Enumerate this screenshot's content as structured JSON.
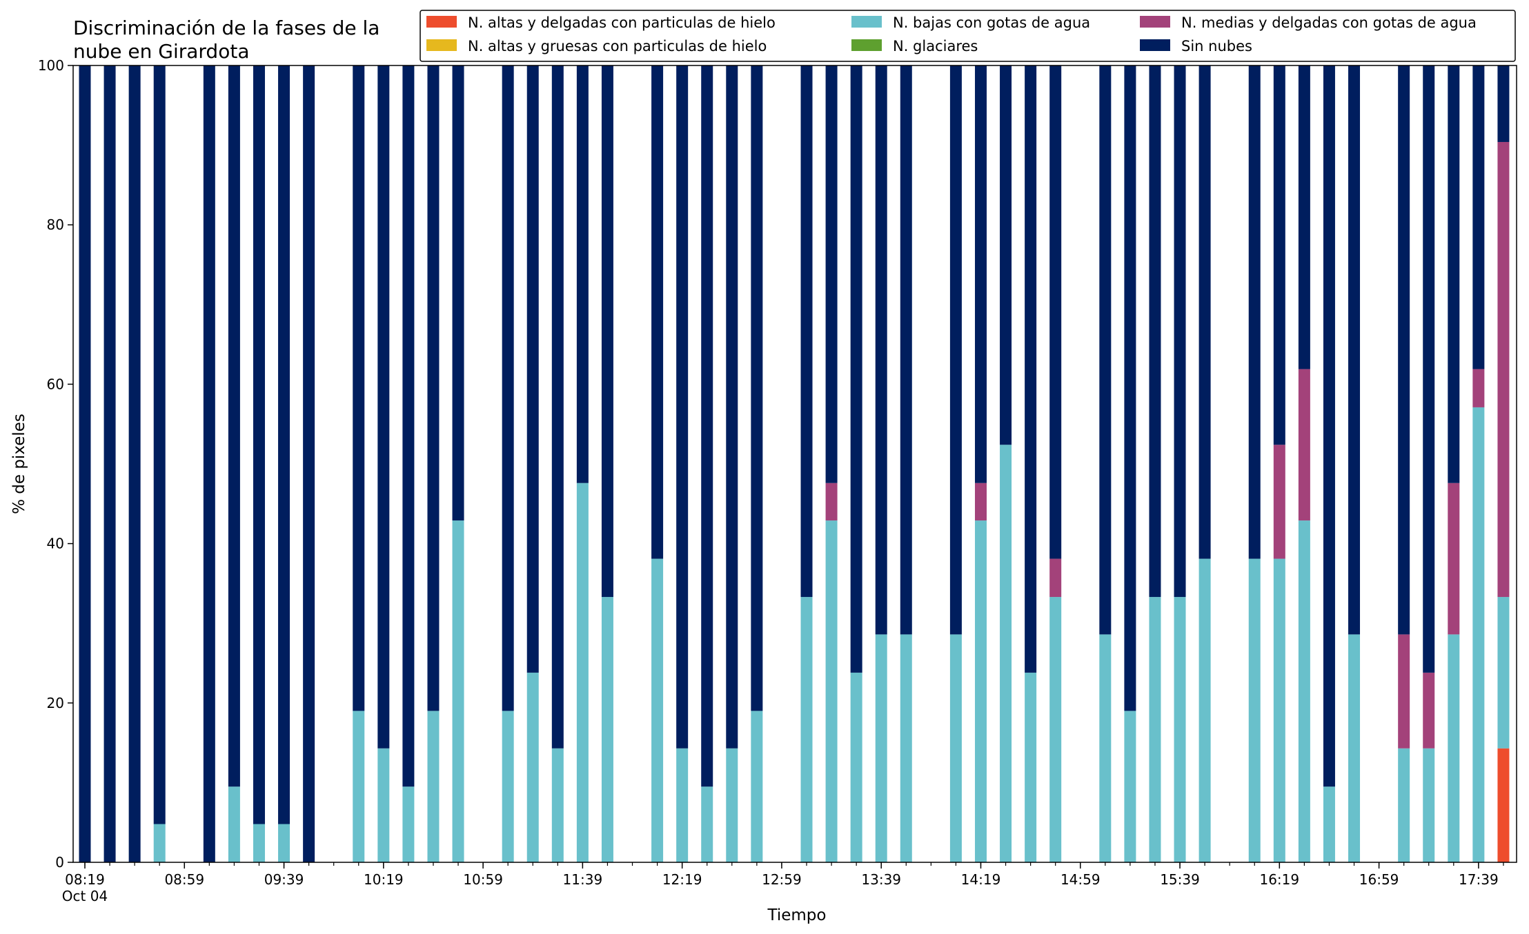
{
  "chart_data": {
    "type": "bar",
    "stacked": true,
    "title_lines": [
      "Discriminación de la fases de la",
      "nube en Girardota"
    ],
    "xlabel": "Tiempo",
    "ylabel": "% de pixeles",
    "ylim": [
      0,
      100
    ],
    "yticks": [
      0,
      20,
      40,
      60,
      80,
      100
    ],
    "grid": false,
    "legend_position": "top-right",
    "x_start": "08:19",
    "x_end": "17:59",
    "x_step_minutes": 10,
    "x_tick_labels": [
      {
        "time": "08:19",
        "label": "08:19",
        "sublabel": "Oct 04"
      },
      {
        "time": "08:59",
        "label": "08:59"
      },
      {
        "time": "09:39",
        "label": "09:39"
      },
      {
        "time": "10:19",
        "label": "10:19"
      },
      {
        "time": "10:59",
        "label": "10:59"
      },
      {
        "time": "11:39",
        "label": "11:39"
      },
      {
        "time": "12:19",
        "label": "12:19"
      },
      {
        "time": "12:59",
        "label": "12:59"
      },
      {
        "time": "13:39",
        "label": "13:39"
      },
      {
        "time": "14:19",
        "label": "14:19"
      },
      {
        "time": "14:59",
        "label": "14:59"
      },
      {
        "time": "15:39",
        "label": "15:39"
      },
      {
        "time": "16:19",
        "label": "16:19"
      },
      {
        "time": "16:59",
        "label": "16:59"
      },
      {
        "time": "17:39",
        "label": "17:39"
      }
    ],
    "series": [
      {
        "name": "N. altas y delgadas con particulas de hielo",
        "color": "#ee4d2d"
      },
      {
        "name": "N. altas y gruesas con particulas de hielo",
        "color": "#e6b81e"
      },
      {
        "name": "N. bajas con gotas de agua",
        "color": "#69c0cb"
      },
      {
        "name": "N. glaciares",
        "color": "#5ea02f"
      },
      {
        "name": "N. medias y delgadas con gotas de agua",
        "color": "#a3427a"
      },
      {
        "name": "Sin nubes",
        "color": "#001e5e"
      }
    ],
    "legend_columns": [
      [
        0,
        1
      ],
      [
        2,
        3
      ],
      [
        4,
        5
      ]
    ],
    "stack_order": [
      0,
      1,
      2,
      3,
      4,
      5
    ],
    "bars": [
      {
        "time": "08:19",
        "values": [
          0,
          0,
          0,
          0,
          0,
          100
        ]
      },
      {
        "time": "08:29",
        "values": [
          0,
          0,
          0,
          0,
          0,
          100
        ]
      },
      {
        "time": "08:39",
        "values": [
          0,
          0,
          0,
          0,
          0,
          100
        ]
      },
      {
        "time": "08:49",
        "values": [
          0,
          0,
          4.8,
          0,
          0,
          95.2
        ]
      },
      {
        "time": "09:09",
        "values": [
          0,
          0,
          0,
          0,
          0,
          100
        ]
      },
      {
        "time": "09:19",
        "values": [
          0,
          0,
          9.5,
          0,
          0,
          90.5
        ]
      },
      {
        "time": "09:29",
        "values": [
          0,
          0,
          4.8,
          0,
          0,
          95.2
        ]
      },
      {
        "time": "09:39",
        "values": [
          0,
          0,
          4.8,
          0,
          0,
          95.2
        ]
      },
      {
        "time": "09:49",
        "values": [
          0,
          0,
          0,
          0,
          0,
          100
        ]
      },
      {
        "time": "10:09",
        "values": [
          0,
          0,
          19.0,
          0,
          0,
          81.0
        ]
      },
      {
        "time": "10:19",
        "values": [
          0,
          0,
          14.3,
          0,
          0,
          85.7
        ]
      },
      {
        "time": "10:29",
        "values": [
          0,
          0,
          9.5,
          0,
          0,
          90.5
        ]
      },
      {
        "time": "10:39",
        "values": [
          0,
          0,
          19.0,
          0,
          0,
          81.0
        ]
      },
      {
        "time": "10:49",
        "values": [
          0,
          0,
          42.9,
          0,
          0,
          57.1
        ]
      },
      {
        "time": "11:09",
        "values": [
          0,
          0,
          19.0,
          0,
          0,
          81.0
        ]
      },
      {
        "time": "11:19",
        "values": [
          0,
          0,
          23.8,
          0,
          0,
          76.2
        ]
      },
      {
        "time": "11:29",
        "values": [
          0,
          0,
          14.3,
          0,
          0,
          85.7
        ]
      },
      {
        "time": "11:39",
        "values": [
          0,
          0,
          47.6,
          0,
          0,
          52.4
        ]
      },
      {
        "time": "11:49",
        "values": [
          0,
          0,
          33.3,
          0,
          0,
          66.7
        ]
      },
      {
        "time": "12:09",
        "values": [
          0,
          0,
          38.1,
          0,
          0,
          61.9
        ]
      },
      {
        "time": "12:19",
        "values": [
          0,
          0,
          14.3,
          0,
          0,
          85.7
        ]
      },
      {
        "time": "12:29",
        "values": [
          0,
          0,
          9.5,
          0,
          0,
          90.5
        ]
      },
      {
        "time": "12:39",
        "values": [
          0,
          0,
          14.3,
          0,
          0,
          85.7
        ]
      },
      {
        "time": "12:49",
        "values": [
          0,
          0,
          19.0,
          0,
          0,
          81.0
        ]
      },
      {
        "time": "13:09",
        "values": [
          0,
          0,
          33.3,
          0,
          0,
          66.7
        ]
      },
      {
        "time": "13:19",
        "values": [
          0,
          0,
          42.9,
          0,
          4.7,
          52.4
        ]
      },
      {
        "time": "13:29",
        "values": [
          0,
          0,
          23.8,
          0,
          0,
          76.2
        ]
      },
      {
        "time": "13:39",
        "values": [
          0,
          0,
          28.6,
          0,
          0,
          71.4
        ]
      },
      {
        "time": "13:49",
        "values": [
          0,
          0,
          28.6,
          0,
          0,
          71.4
        ]
      },
      {
        "time": "14:09",
        "values": [
          0,
          0,
          28.6,
          0,
          0,
          71.4
        ]
      },
      {
        "time": "14:19",
        "values": [
          0,
          0,
          42.9,
          0,
          4.7,
          52.4
        ]
      },
      {
        "time": "14:29",
        "values": [
          0,
          0,
          52.4,
          0,
          0,
          47.6
        ]
      },
      {
        "time": "14:39",
        "values": [
          0,
          0,
          23.8,
          0,
          0,
          76.2
        ]
      },
      {
        "time": "14:49",
        "values": [
          0,
          0,
          33.3,
          0,
          4.8,
          61.9
        ]
      },
      {
        "time": "15:09",
        "values": [
          0,
          0,
          28.6,
          0,
          0,
          71.4
        ]
      },
      {
        "time": "15:19",
        "values": [
          0,
          0,
          19.0,
          0,
          0,
          81.0
        ]
      },
      {
        "time": "15:29",
        "values": [
          0,
          0,
          33.3,
          0,
          0,
          66.7
        ]
      },
      {
        "time": "15:39",
        "values": [
          0,
          0,
          33.3,
          0,
          0,
          66.7
        ]
      },
      {
        "time": "15:49",
        "values": [
          0,
          0,
          38.1,
          0,
          0,
          61.9
        ]
      },
      {
        "time": "16:09",
        "values": [
          0,
          0,
          38.1,
          0,
          0,
          61.9
        ]
      },
      {
        "time": "16:19",
        "values": [
          0,
          0,
          38.1,
          0,
          14.3,
          47.6
        ]
      },
      {
        "time": "16:29",
        "values": [
          0,
          0,
          42.9,
          0,
          19.0,
          38.1
        ]
      },
      {
        "time": "16:39",
        "values": [
          0,
          0,
          9.5,
          0,
          0,
          90.5
        ]
      },
      {
        "time": "16:49",
        "values": [
          0,
          0,
          28.6,
          0,
          0,
          71.4
        ]
      },
      {
        "time": "17:09",
        "values": [
          0,
          0,
          14.3,
          0,
          14.3,
          71.4
        ]
      },
      {
        "time": "17:19",
        "values": [
          0,
          0,
          14.3,
          0,
          9.5,
          76.2
        ]
      },
      {
        "time": "17:29",
        "values": [
          0,
          0,
          28.6,
          0,
          19.0,
          52.4
        ]
      },
      {
        "time": "17:39",
        "values": [
          0,
          0,
          57.1,
          0,
          4.8,
          38.1
        ]
      },
      {
        "time": "17:49",
        "values": [
          14.3,
          0,
          19.0,
          0,
          57.1,
          9.6
        ]
      }
    ]
  }
}
